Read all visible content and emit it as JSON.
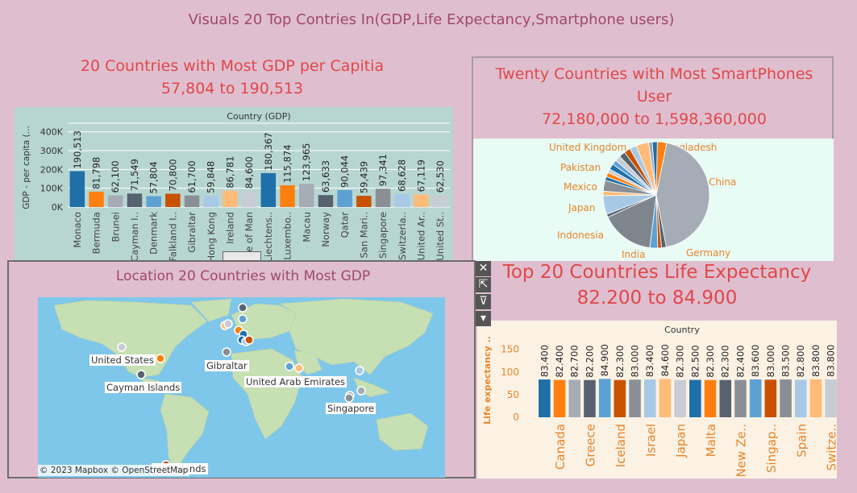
{
  "page_title": "Visuals 20 Top Contries In(GDP,Life Expectancy,Smartphone users)",
  "gdp": {
    "title": "20 Countries with Most GDP per Capitia",
    "subtitle": "57,804 to 190,513"
  },
  "phones": {
    "title_line1": "Twenty Countries with Most SmartPhones",
    "title_line2": "User",
    "subtitle": "72,180,000 to 1,598,360,000"
  },
  "life": {
    "title": "Top 20 Countries Life Expectancy",
    "subtitle": "82.200 to 84.900"
  },
  "map": {
    "title": "Location 20 Countries with Most GDP",
    "copyright": "© 2023 Mapbox © OpenStreetMap",
    "labels": [
      {
        "text": "United States"
      },
      {
        "text": "Cayman Islands"
      },
      {
        "text": "Gibraltar"
      },
      {
        "text": "United Arab Emirates"
      },
      {
        "text": "Singapore"
      },
      {
        "text": "and Islands"
      }
    ]
  },
  "toolbar": {
    "close": "✕",
    "popout": "⇱",
    "filter": "⊽",
    "more": "▾"
  },
  "chart_data": [
    {
      "type": "bar",
      "id": "gdp",
      "header": "Country (GDP)",
      "ylabel": "GDP - per capita (...",
      "yticks": [
        "0K",
        "100K",
        "200K",
        "300K",
        "400K"
      ],
      "ylim": [
        0,
        420000
      ],
      "categories": [
        "Monaco",
        "Bermuda",
        "Brunei",
        "Cayman I..",
        "Denmark",
        "Falkland I..",
        "Gibraltar",
        "Hong Kong",
        "Ireland",
        "Isle of Man",
        "Liechtens..",
        "Luxembo..",
        "Macau",
        "Norway",
        "Qatar",
        "San Mari..",
        "Singapore",
        "Switzerla..",
        "United Ar..",
        "United St.."
      ],
      "values": [
        190513,
        81798,
        62100,
        71549,
        57804,
        70800,
        61700,
        59848,
        86781,
        84600,
        180367,
        115874,
        123965,
        63633,
        90044,
        59439,
        97341,
        68628,
        67119,
        62530
      ],
      "labels": [
        "190,513",
        "81,798",
        "62,100",
        "71,549",
        "57,804",
        "70,800",
        "61,700",
        "59,848",
        "86,781",
        "84,600",
        "180,367",
        "115,874",
        "123,965",
        "63,633",
        "90,044",
        "59,439",
        "97,341",
        "68,628",
        "67,119",
        "62,530"
      ],
      "colors": [
        "#1f6fa8",
        "#ff7f0e",
        "#a5acb5",
        "#566270",
        "#5da1d3",
        "#c85200",
        "#8a8f96",
        "#a7c9e6",
        "#ffbb78",
        "#c8ccd4",
        "#1f6fa8",
        "#ff7f0e",
        "#a5acb5",
        "#566270",
        "#5da1d3",
        "#c85200",
        "#8a8f96",
        "#a7c9e6",
        "#ffbb78",
        "#c8ccd4"
      ]
    },
    {
      "type": "pie",
      "id": "smartphones",
      "slices": [
        {
          "name": "Bangladesh",
          "value": 3.0,
          "color": "#ff7f0e"
        },
        {
          "name": "China",
          "value": 46.0,
          "color": "#a5acb5"
        },
        {
          "name": "",
          "value": 1.5,
          "color": "#566270"
        },
        {
          "name": "",
          "value": 1.2,
          "color": "#c85200"
        },
        {
          "name": "Germany",
          "value": 2.5,
          "color": "#5da1d3"
        },
        {
          "name": "India",
          "value": 17.0,
          "color": "#7f858d"
        },
        {
          "name": "",
          "value": 1.0,
          "color": "#566270"
        },
        {
          "name": "Indonesia",
          "value": 6.0,
          "color": "#a7c9e6"
        },
        {
          "name": "",
          "value": 1.4,
          "color": "#ffbb78"
        },
        {
          "name": "Japan",
          "value": 3.5,
          "color": "#8a8f96"
        },
        {
          "name": "",
          "value": 1.2,
          "color": "#1f6fa8"
        },
        {
          "name": "Mexico",
          "value": 1.4,
          "color": "#ff7f0e"
        },
        {
          "name": "",
          "value": 1.2,
          "color": "#c8ccd4"
        },
        {
          "name": "",
          "value": 1.8,
          "color": "#1f6fa8"
        },
        {
          "name": "Pakistan",
          "value": 1.5,
          "color": "#5da1d3"
        },
        {
          "name": "",
          "value": 1.8,
          "color": "#c8ccd4"
        },
        {
          "name": "",
          "value": 2.0,
          "color": "#566270"
        },
        {
          "name": "United Kingdom",
          "value": 2.0,
          "color": "#c85200"
        },
        {
          "name": "",
          "value": 2.2,
          "color": "#a7c9e6"
        },
        {
          "name": "",
          "value": 4.0,
          "color": "#ffbb78"
        },
        {
          "name": "",
          "value": 1.2,
          "color": "#a5acb5"
        },
        {
          "name": "",
          "value": 1.6,
          "color": "#1f6fa8"
        }
      ]
    },
    {
      "type": "bar",
      "id": "life",
      "header": "Country",
      "ylabel": "Life expectancy ..",
      "yticks": [
        "0",
        "50",
        "100",
        "150"
      ],
      "ylim": [
        0,
        160
      ],
      "categories": [
        "",
        "Canada",
        "",
        "Greece",
        "",
        "Iceland",
        "",
        "Israel",
        "",
        "Japan",
        "",
        "Malta",
        "",
        "New Ze..",
        "",
        "Singap..",
        "",
        "Spain",
        "",
        "Switze.."
      ],
      "values": [
        83.4,
        82.4,
        82.7,
        82.2,
        84.9,
        82.3,
        83.0,
        83.4,
        84.6,
        82.3,
        82.5,
        82.3,
        82.3,
        82.4,
        83.6,
        83.0,
        83.5,
        82.8,
        83.8,
        83.8
      ],
      "labels": [
        "83.400",
        "82.400",
        "82.700",
        "82.200",
        "84.900",
        "82.300",
        "83.000",
        "83.400",
        "84.600",
        "82.300",
        "82.500",
        "82.300",
        "82.300",
        "82.400",
        "83.600",
        "83.000",
        "83.500",
        "82.800",
        "83.800",
        "83.800"
      ],
      "colors": [
        "#1f6fa8",
        "#ff7f0e",
        "#a5acb5",
        "#566270",
        "#5da1d3",
        "#c85200",
        "#8a8f96",
        "#a7c9e6",
        "#ffbb78",
        "#c8ccd4",
        "#1f6fa8",
        "#ff7f0e",
        "#566270",
        "#8a8f96",
        "#5da1d3",
        "#c85200",
        "#8a8f96",
        "#a7c9e6",
        "#ffbb78",
        "#c8ccd4"
      ]
    }
  ]
}
